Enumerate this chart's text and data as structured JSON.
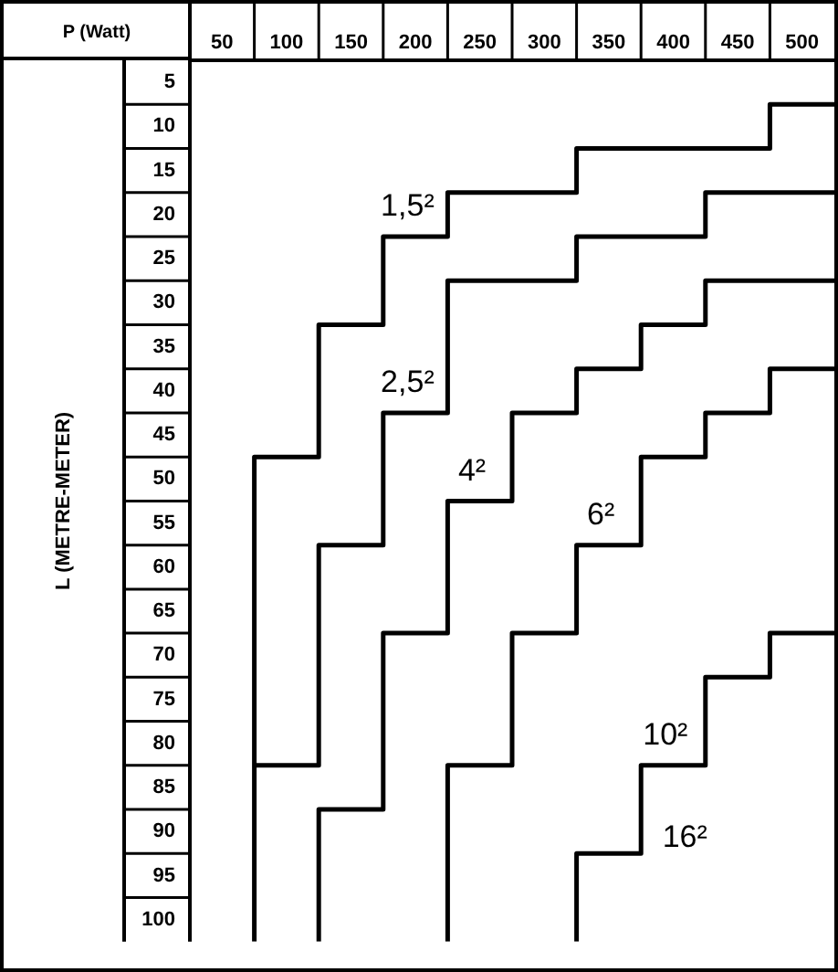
{
  "chart_data": {
    "type": "step",
    "xlabel": "P (Watt)",
    "ylabel": "L (METRE-METER)",
    "xlim": [
      25,
      525
    ],
    "xticks": [
      50,
      100,
      150,
      200,
      250,
      300,
      350,
      400,
      450,
      500
    ],
    "ylim": [
      102.5,
      2.5
    ],
    "yticks": [
      5,
      10,
      15,
      20,
      25,
      30,
      35,
      40,
      45,
      50,
      55,
      60,
      65,
      70,
      75,
      80,
      85,
      90,
      95,
      100
    ],
    "grid": false,
    "legend": false,
    "marker": "none",
    "line_style": "solid",
    "series": [
      {
        "color": "#000000",
        "x": [
          75,
          75,
          125,
          175,
          225,
          325,
          475,
          525
        ],
        "values": [
          102.5,
          47.5,
          32.5,
          22.5,
          17.5,
          12.5,
          7.5,
          7.5
        ]
      },
      {
        "color": "#000000",
        "x": [
          75,
          125,
          175,
          225,
          325,
          425,
          525
        ],
        "values": [
          82.5,
          57.5,
          42.5,
          27.5,
          22.5,
          17.5,
          17.5
        ]
      },
      {
        "color": "#000000",
        "x": [
          125,
          125,
          175,
          225,
          275,
          325,
          375,
          425,
          525
        ],
        "values": [
          102.5,
          87.5,
          67.5,
          52.5,
          42.5,
          37.5,
          32.5,
          27.5,
          27.5
        ]
      },
      {
        "color": "#000000",
        "x": [
          225,
          225,
          275,
          325,
          375,
          425,
          475,
          525
        ],
        "values": [
          102.5,
          82.5,
          67.5,
          57.5,
          47.5,
          42.5,
          37.5,
          37.5
        ]
      },
      {
        "color": "#000000",
        "x": [
          325,
          325,
          375,
          425,
          475,
          525
        ],
        "values": [
          102.5,
          92.5,
          82.5,
          72.5,
          67.5,
          67.5
        ]
      }
    ],
    "annotations": [
      "1,5²",
      "2,5²",
      "4²",
      "6²",
      "10²",
      "16²"
    ]
  }
}
